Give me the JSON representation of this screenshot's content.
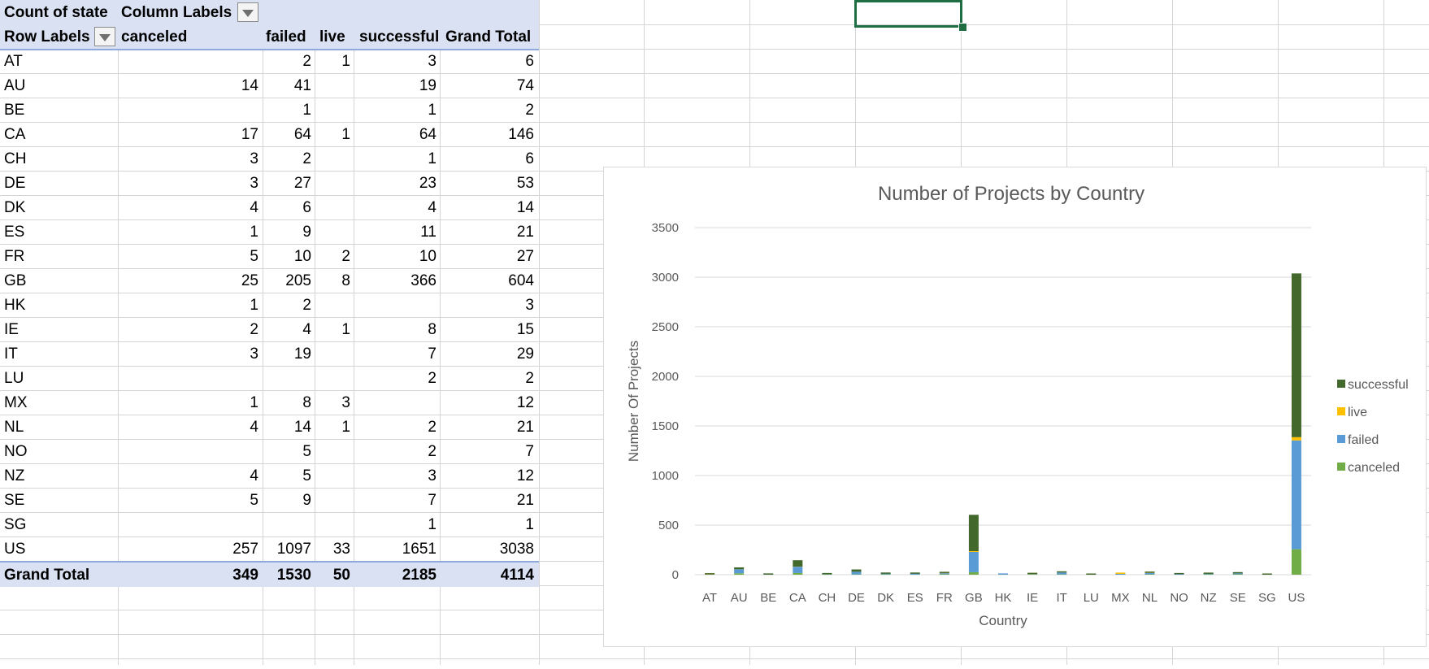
{
  "pivot": {
    "corner_label": "Count of state",
    "column_labels": "Column Labels",
    "row_labels": "Row Labels",
    "col_headers": [
      "canceled",
      "failed",
      "live",
      "successful",
      "Grand Total"
    ],
    "rows": [
      {
        "label": "AT",
        "canceled": "",
        "failed": "2",
        "live": "1",
        "successful": "3",
        "total": "6"
      },
      {
        "label": "AU",
        "canceled": "14",
        "failed": "41",
        "live": "",
        "successful": "19",
        "total": "74"
      },
      {
        "label": "BE",
        "canceled": "",
        "failed": "1",
        "live": "",
        "successful": "1",
        "total": "2"
      },
      {
        "label": "CA",
        "canceled": "17",
        "failed": "64",
        "live": "1",
        "successful": "64",
        "total": "146"
      },
      {
        "label": "CH",
        "canceled": "3",
        "failed": "2",
        "live": "",
        "successful": "1",
        "total": "6"
      },
      {
        "label": "DE",
        "canceled": "3",
        "failed": "27",
        "live": "",
        "successful": "23",
        "total": "53"
      },
      {
        "label": "DK",
        "canceled": "4",
        "failed": "6",
        "live": "",
        "successful": "4",
        "total": "14"
      },
      {
        "label": "ES",
        "canceled": "1",
        "failed": "9",
        "live": "",
        "successful": "11",
        "total": "21"
      },
      {
        "label": "FR",
        "canceled": "5",
        "failed": "10",
        "live": "2",
        "successful": "10",
        "total": "27"
      },
      {
        "label": "GB",
        "canceled": "25",
        "failed": "205",
        "live": "8",
        "successful": "366",
        "total": "604"
      },
      {
        "label": "HK",
        "canceled": "1",
        "failed": "2",
        "live": "",
        "successful": "",
        "total": "3"
      },
      {
        "label": "IE",
        "canceled": "2",
        "failed": "4",
        "live": "1",
        "successful": "8",
        "total": "15"
      },
      {
        "label": "IT",
        "canceled": "3",
        "failed": "19",
        "live": "",
        "successful": "7",
        "total": "29"
      },
      {
        "label": "LU",
        "canceled": "",
        "failed": "",
        "live": "",
        "successful": "2",
        "total": "2"
      },
      {
        "label": "MX",
        "canceled": "1",
        "failed": "8",
        "live": "3",
        "successful": "",
        "total": "12"
      },
      {
        "label": "NL",
        "canceled": "4",
        "failed": "14",
        "live": "1",
        "successful": "2",
        "total": "21"
      },
      {
        "label": "NO",
        "canceled": "",
        "failed": "5",
        "live": "",
        "successful": "2",
        "total": "7"
      },
      {
        "label": "NZ",
        "canceled": "4",
        "failed": "5",
        "live": "",
        "successful": "3",
        "total": "12"
      },
      {
        "label": "SE",
        "canceled": "5",
        "failed": "9",
        "live": "",
        "successful": "7",
        "total": "21"
      },
      {
        "label": "SG",
        "canceled": "",
        "failed": "",
        "live": "",
        "successful": "1",
        "total": "1"
      },
      {
        "label": "US",
        "canceled": "257",
        "failed": "1097",
        "live": "33",
        "successful": "1651",
        "total": "3038"
      }
    ],
    "grand_total": {
      "label": "Grand Total",
      "canceled": "349",
      "failed": "1530",
      "live": "50",
      "successful": "2185",
      "total": "4114"
    }
  },
  "chart_data": {
    "type": "bar",
    "stacked": true,
    "title": "Number of Projects by Country",
    "xlabel": "Country",
    "ylabel": "Number Of Projects",
    "ylim": [
      0,
      3500
    ],
    "yticks": [
      "0",
      "500",
      "1000",
      "1500",
      "2000",
      "2500",
      "3000",
      "3500"
    ],
    "grid": true,
    "legend_position": "right",
    "categories": [
      "AT",
      "AU",
      "BE",
      "CA",
      "CH",
      "DE",
      "DK",
      "ES",
      "FR",
      "GB",
      "HK",
      "IE",
      "IT",
      "LU",
      "MX",
      "NL",
      "NO",
      "NZ",
      "SE",
      "SG",
      "US"
    ],
    "series": [
      {
        "name": "canceled",
        "color": "#70ad47",
        "values": [
          0,
          14,
          0,
          17,
          3,
          3,
          4,
          1,
          5,
          25,
          1,
          2,
          3,
          0,
          1,
          4,
          0,
          4,
          5,
          0,
          257
        ]
      },
      {
        "name": "failed",
        "color": "#5b9bd5",
        "values": [
          2,
          41,
          1,
          64,
          2,
          27,
          6,
          9,
          10,
          205,
          2,
          4,
          19,
          0,
          8,
          14,
          5,
          5,
          9,
          0,
          1097
        ]
      },
      {
        "name": "live",
        "color": "#ffc000",
        "values": [
          1,
          0,
          0,
          1,
          0,
          0,
          0,
          0,
          2,
          8,
          0,
          1,
          0,
          0,
          3,
          1,
          0,
          0,
          0,
          0,
          33
        ]
      },
      {
        "name": "successful",
        "color": "#43682b",
        "values": [
          3,
          19,
          1,
          64,
          1,
          23,
          4,
          11,
          10,
          366,
          0,
          8,
          7,
          2,
          0,
          2,
          2,
          3,
          7,
          1,
          1651
        ]
      }
    ],
    "legend_order": [
      "successful",
      "live",
      "failed",
      "canceled"
    ]
  },
  "colors": {
    "pivot_header_bg": "#d9e1f2",
    "pivot_border": "#8ea9db",
    "gridline": "#d4d4d4",
    "selection": "#1f6e43"
  }
}
